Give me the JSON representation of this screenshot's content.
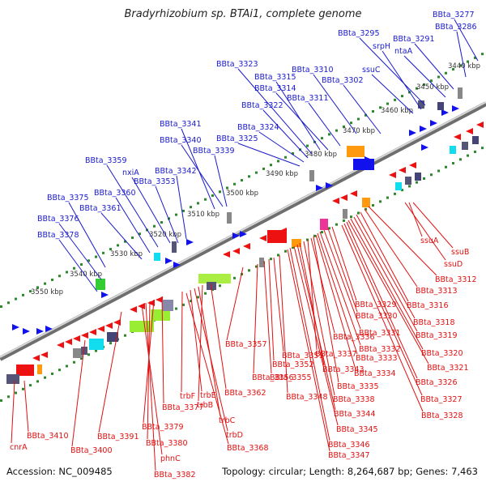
{
  "title": "Bradyrhizobium sp. BTAi1, complete genome",
  "accession": "Accession: NC_009485",
  "topology": "Topology: circular; Length: 8,264,687 bp; Genes: 7,463",
  "colors": {
    "forward_label": "#1a1acc",
    "reverse_label": "#e01010",
    "backbone": "#888888"
  },
  "kbp_ticks": [
    "3440 kbp",
    "3450 kbp",
    "3460 kbp",
    "3470 kbp",
    "3480 kbp",
    "3490 kbp",
    "3500 kbp",
    "3510 kbp",
    "3520 kbp",
    "3530 kbp",
    "3540 kbp",
    "3550 kbp"
  ],
  "forward_genes": [
    "BBta_3277",
    "BBta_3286",
    "BBta_3291",
    "ntaA",
    "BBta_3295",
    "srpH",
    "ssuC",
    "BBta_3302",
    "BBta_3310",
    "BBta_3311",
    "BBta_3314",
    "BBta_3315",
    "BBta_3322",
    "BBta_3323",
    "BBta_3324",
    "BBta_3325",
    "BBta_3339",
    "BBta_3340",
    "BBta_3341",
    "BBta_3342",
    "BBta_3353",
    "nxiA",
    "BBta_3359",
    "BBta_3360",
    "BBta_3361",
    "BBta_3375",
    "BBta_3376",
    "BBta_3378"
  ],
  "reverse_genes": [
    "ssuA",
    "ssuB",
    "ssuD",
    "BBta_3312",
    "BBta_3313",
    "BBta_3316",
    "BBta_3318",
    "BBta_3319",
    "BBta_3320",
    "BBta_3321",
    "BBta_3326",
    "BBta_3327",
    "BBta_3328",
    "BBta_3329",
    "BBta_3330",
    "BBta_3331",
    "BBta_3332",
    "BBta_3333",
    "BBta_3334",
    "BBta_3335",
    "BBta_3336",
    "BBta_3337",
    "BBta_3338",
    "BBta_3343",
    "BBta_3344",
    "BBta_3345",
    "BBta_3346",
    "BBta_3347",
    "BBta_3348",
    "BBta_3351",
    "BBta_3352",
    "BBta_3355",
    "BBta_3356",
    "BBta_3357",
    "BBta_3362",
    "trbB",
    "trbC",
    "trbD",
    "trbE",
    "trbF",
    "BBta_3368",
    "BBta_3377",
    "BBta_3379",
    "BBta_3380",
    "BBta_3382",
    "phnC",
    "BBta_3391",
    "BBta_3400",
    "BBta_3410",
    "cnrA"
  ]
}
